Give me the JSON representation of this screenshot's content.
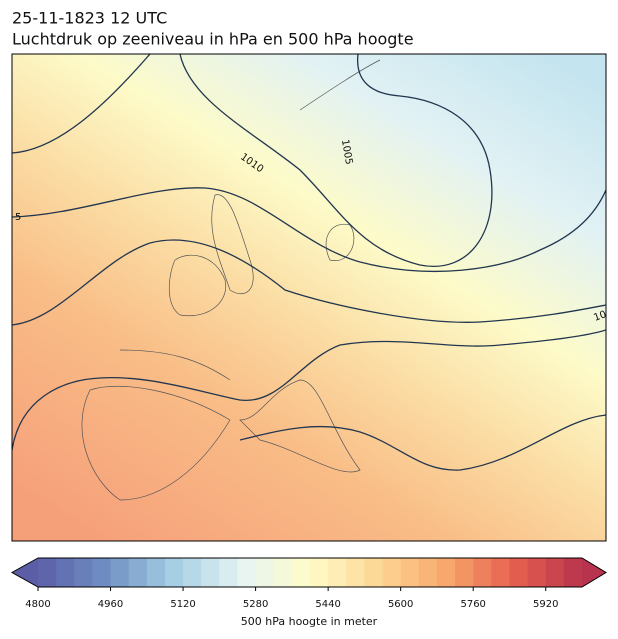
{
  "header": {
    "title": "25-11-1823 12 UTC",
    "subtitle": "Luchtdruk op zeeniveau in hPa en 500 hPa hoogte"
  },
  "map": {
    "contour_labels": [
      "1010",
      "1005",
      "5",
      "10"
    ]
  },
  "colorbar": {
    "label": "500 hPa hoogte in meter",
    "lim": [
      4800,
      6000
    ],
    "ticks": [
      4800,
      4960,
      5120,
      5280,
      5440,
      5600,
      5760,
      5920
    ],
    "level_step": 40,
    "colors": [
      "#5b5ea6",
      "#6f8fc3",
      "#a6cfe3",
      "#e6f4f3",
      "#fefcc8",
      "#fdd795",
      "#f8a76d",
      "#e6604f",
      "#b8334e"
    ]
  }
}
